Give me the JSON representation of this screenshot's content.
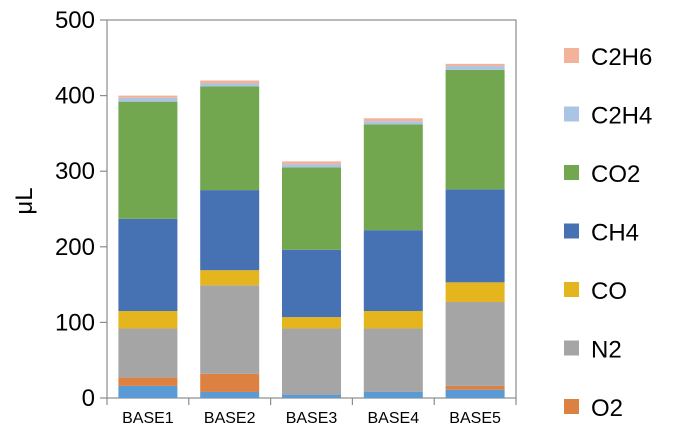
{
  "chart_data": {
    "type": "bar",
    "stacked": true,
    "title": "",
    "xlabel": "",
    "ylabel": "μL",
    "ylim": [
      0,
      500
    ],
    "yticks": [
      0,
      100,
      200,
      300,
      400,
      500
    ],
    "grid": false,
    "legend_position": "right",
    "categories": [
      "BASE1",
      "BASE2",
      "BASE3",
      "BASE4",
      "BASE5"
    ],
    "series": [
      {
        "name": "",
        "color": "#5B9BD5",
        "values": [
          16,
          8,
          4,
          8,
          11
        ]
      },
      {
        "name": "O2",
        "color": "#DD8143",
        "values": [
          11,
          24,
          0,
          0,
          5
        ]
      },
      {
        "name": "N2",
        "color": "#A5A5A5",
        "values": [
          65,
          117,
          88,
          84,
          111
        ]
      },
      {
        "name": "CO",
        "color": "#E5B51E",
        "values": [
          23,
          20,
          15,
          23,
          26
        ]
      },
      {
        "name": "CH4",
        "color": "#4672B4",
        "values": [
          122,
          106,
          89,
          107,
          123
        ]
      },
      {
        "name": "CO2",
        "color": "#72A74F",
        "values": [
          155,
          137,
          109,
          140,
          158
        ]
      },
      {
        "name": "C2H4",
        "color": "#A9C4E4",
        "values": [
          5,
          4,
          4,
          4,
          5
        ]
      },
      {
        "name": "C2H6",
        "color": "#F3B39A",
        "values": [
          3,
          4,
          4,
          4,
          3
        ]
      }
    ],
    "legend_order": [
      "C2H6",
      "C2H4",
      "CO2",
      "CH4",
      "CO",
      "N2",
      "O2"
    ]
  }
}
